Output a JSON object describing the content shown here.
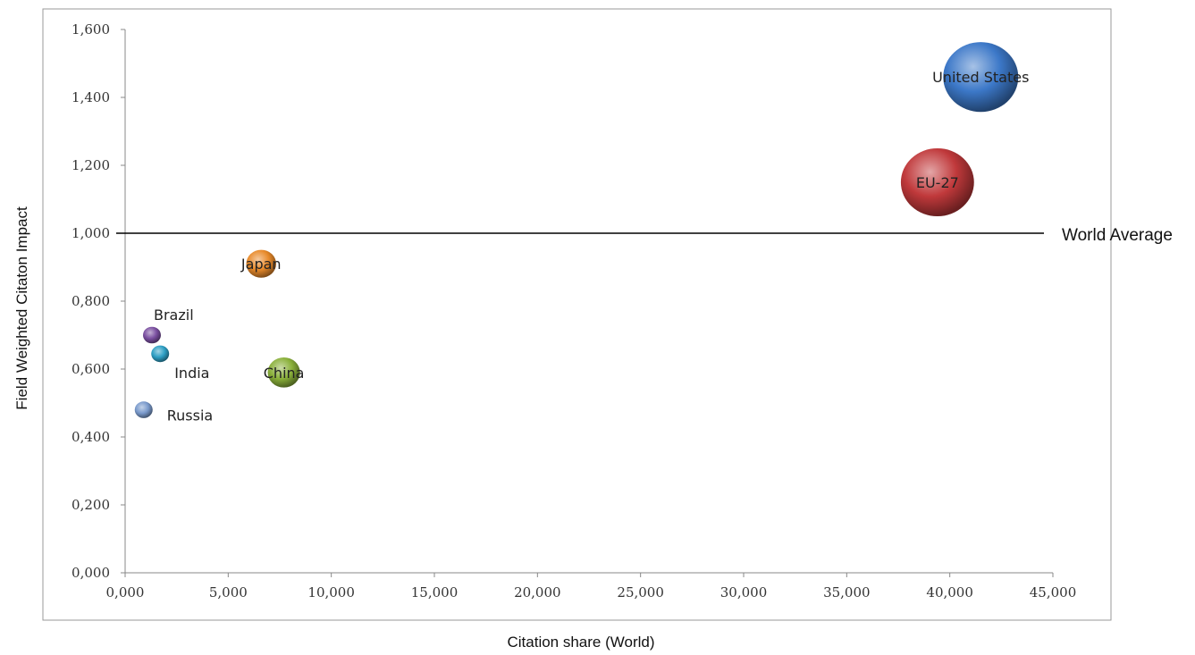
{
  "chart_data": {
    "type": "scatter",
    "subtype": "bubble",
    "title": "",
    "xlabel": "Citation share (World)",
    "ylabel": "Field Weighted Citaton Impact",
    "xlim": [
      0,
      45000
    ],
    "ylim": [
      0,
      1600
    ],
    "x_ticks": [
      0,
      5000,
      10000,
      15000,
      20000,
      25000,
      30000,
      35000,
      40000,
      45000
    ],
    "x_tick_labels": [
      "0,000",
      "5,000",
      "10,000",
      "15,000",
      "20,000",
      "25,000",
      "30,000",
      "35,000",
      "40,000",
      "45,000"
    ],
    "y_ticks": [
      0,
      200,
      400,
      600,
      800,
      1000,
      1200,
      1400,
      1600
    ],
    "y_tick_labels": [
      "0,000",
      "0,200",
      "0,400",
      "0,600",
      "0,800",
      "1,000",
      "1,200",
      "1,400",
      "1,600"
    ],
    "grid": false,
    "legend": "none",
    "reference_line": {
      "y": 1000,
      "label": "World Average"
    },
    "points": [
      {
        "label": "United States",
        "x": 41500,
        "y": 1460,
        "size": 41500,
        "color": "#3c78c8"
      },
      {
        "label": "EU-27",
        "x": 39400,
        "y": 1150,
        "size": 39400,
        "color": "#c0393b"
      },
      {
        "label": "Japan",
        "x": 6600,
        "y": 910,
        "size": 6600,
        "color": "#e88a2a"
      },
      {
        "label": "China",
        "x": 7700,
        "y": 590,
        "size": 7700,
        "color": "#8ab03a"
      },
      {
        "label": "Brazil",
        "x": 1300,
        "y": 700,
        "size": 1300,
        "color": "#7a4fa0"
      },
      {
        "label": "India",
        "x": 1700,
        "y": 645,
        "size": 1700,
        "color": "#2e9fc4"
      },
      {
        "label": "Russia",
        "x": 900,
        "y": 480,
        "size": 900,
        "color": "#7a9acc"
      }
    ]
  }
}
